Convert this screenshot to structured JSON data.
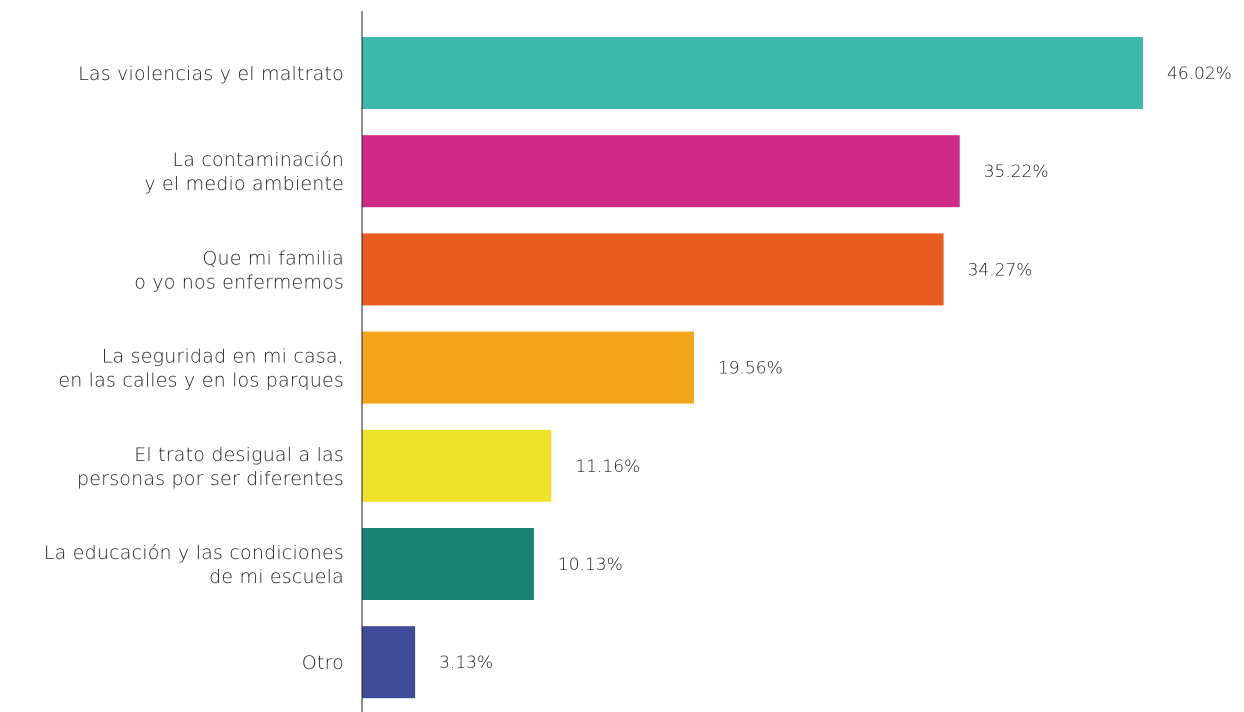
{
  "chart_data": {
    "type": "bar",
    "orientation": "horizontal",
    "categories": [
      [
        "Las violencias y el maltrato"
      ],
      [
        "La contaminación",
        "y el medio ambiente"
      ],
      [
        "Que mi familia",
        "o yo nos enfermemos"
      ],
      [
        "La seguridad en mi casa,",
        "en las calles y en los parques"
      ],
      [
        "El trato desigual a las",
        "personas por ser diferentes"
      ],
      [
        "La educación y las condiciones",
        "de mi escuela"
      ],
      [
        "Otro"
      ]
    ],
    "values": [
      46.02,
      35.22,
      34.27,
      19.56,
      11.16,
      10.13,
      3.13
    ],
    "value_labels": [
      "46.02%",
      "35.22%",
      "34.27%",
      "19.56%",
      "11.16%",
      "10.13%",
      "3.13%"
    ],
    "colors": [
      "#3CB8AC",
      "#CF2A88",
      "#EA5B20",
      "#F5A51A",
      "#EFE22D",
      "#198273",
      "#414A9A"
    ],
    "xlim": [
      0,
      46.02
    ],
    "grid": false,
    "legend": "none",
    "title": "",
    "xlabel": "",
    "ylabel": ""
  }
}
